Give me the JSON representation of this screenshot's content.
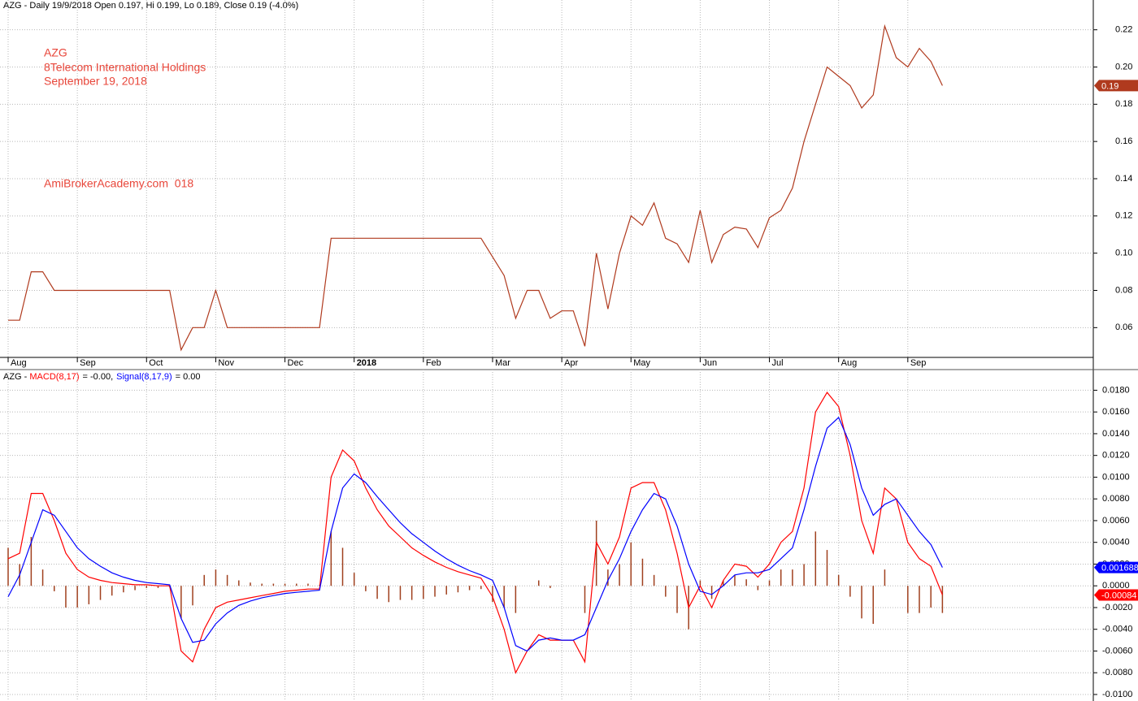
{
  "chart_data": [
    {
      "type": "line",
      "title": "AZG - Daily 19/9/2018 Open 0.197, Hi 0.199, Lo 0.189, Close 0.19 (-4.0%)",
      "annotations": [
        "AZG",
        "8Telecom International Holdings",
        "September 19, 2018",
        "AmiBrokerAcademy.com  018"
      ],
      "categories": [
        "Aug",
        null,
        null,
        null,
        null,
        null,
        "Sep",
        null,
        null,
        null,
        null,
        null,
        "Oct",
        null,
        null,
        null,
        null,
        null,
        "Nov",
        null,
        null,
        null,
        null,
        null,
        "Dec",
        null,
        null,
        null,
        null,
        null,
        "2018",
        null,
        null,
        null,
        null,
        null,
        "Feb",
        null,
        null,
        null,
        null,
        null,
        "Mar",
        null,
        null,
        null,
        null,
        null,
        "Apr",
        null,
        null,
        null,
        null,
        null,
        "May",
        null,
        null,
        null,
        null,
        null,
        "Jun",
        null,
        null,
        null,
        null,
        null,
        "Jul",
        null,
        null,
        null,
        null,
        null,
        "Aug",
        null,
        null,
        null,
        null,
        null,
        "Sep",
        null,
        null,
        null
      ],
      "series": [
        {
          "color": "#b03a1e",
          "last_label": "0.19",
          "values": [
            0.064,
            0.064,
            0.09,
            0.09,
            0.08,
            0.08,
            0.08,
            0.08,
            0.08,
            0.08,
            0.08,
            0.08,
            0.08,
            0.08,
            0.08,
            0.048,
            0.06,
            0.06,
            0.08,
            0.06,
            0.06,
            0.06,
            0.06,
            0.06,
            0.06,
            0.06,
            0.06,
            0.06,
            0.108,
            0.108,
            0.108,
            0.108,
            0.108,
            0.108,
            0.108,
            0.108,
            0.108,
            0.108,
            0.108,
            0.108,
            0.108,
            0.108,
            0.098,
            0.088,
            0.065,
            0.08,
            0.08,
            0.065,
            0.069,
            0.069,
            0.05,
            0.1,
            0.07,
            0.1,
            0.12,
            0.115,
            0.127,
            0.108,
            0.105,
            0.095,
            0.123,
            0.095,
            0.11,
            0.114,
            0.113,
            0.103,
            0.119,
            0.123,
            0.135,
            0.16,
            0.18,
            0.2,
            0.195,
            0.19,
            0.178,
            0.185,
            0.222,
            0.205,
            0.2,
            0.21,
            0.203,
            0.19
          ]
        }
      ],
      "ylim": [
        0.044,
        0.236
      ],
      "yticks": [
        0.06,
        0.08,
        {
          "value": 0.1,
          "label": "0.10"
        },
        0.12,
        0.14,
        0.16,
        0.18,
        {
          "value": 0.2,
          "label": "0.20"
        },
        0.22
      ],
      "grid": true
    },
    {
      "type": "line",
      "title": "AZG - ",
      "series": [
        {
          "name": "MACD(8,17)",
          "readout": "= -0.00,",
          "color": "#ff0000",
          "last_label": "-0.00084",
          "values": [
            0.0025,
            0.003,
            0.0085,
            0.0085,
            0.006,
            0.003,
            0.0015,
            0.0008,
            0.0005,
            0.0003,
            0.0002,
            0.0001,
            0.0001,
            0,
            0,
            -0.006,
            -0.007,
            -0.004,
            -0.002,
            -0.0015,
            -0.0013,
            -0.0011,
            -0.0009,
            -0.0007,
            -0.0005,
            -0.0004,
            -0.0003,
            -0.0003,
            0.01,
            0.0125,
            0.0115,
            0.009,
            0.007,
            0.0055,
            0.0045,
            0.0035,
            0.0028,
            0.0022,
            0.0017,
            0.0013,
            0.001,
            0.0007,
            -0.001,
            -0.004,
            -0.008,
            -0.006,
            -0.0045,
            -0.005,
            -0.005,
            -0.005,
            -0.007,
            0.004,
            0.002,
            0.0045,
            0.009,
            0.0095,
            0.0095,
            0.007,
            0.003,
            -0.002,
            0,
            -0.002,
            0.0005,
            0.002,
            0.0018,
            0.0008,
            0.002,
            0.004,
            0.005,
            0.009,
            0.016,
            0.0178,
            0.0165,
            0.012,
            0.006,
            0.003,
            0.009,
            0.008,
            0.004,
            0.0025,
            0.0018,
            -0.00084
          ]
        },
        {
          "name": "Signal(8,17,9)",
          "readout": "= 0.00",
          "color": "#0000ff",
          "last_label": "0.001688",
          "values": [
            -0.001,
            0.001,
            0.004,
            0.007,
            0.0065,
            0.005,
            0.0035,
            0.0025,
            0.0018,
            0.0012,
            0.0008,
            0.0005,
            0.0003,
            0.0002,
            0.0001,
            -0.003,
            -0.0052,
            -0.005,
            -0.0035,
            -0.0025,
            -0.0018,
            -0.0014,
            -0.0011,
            -0.0009,
            -0.0007,
            -0.0006,
            -0.0005,
            -0.0004,
            0.005,
            0.009,
            0.0103,
            0.0095,
            0.0082,
            0.007,
            0.0058,
            0.0048,
            0.004,
            0.0032,
            0.0025,
            0.0019,
            0.0014,
            0.001,
            0.0005,
            -0.002,
            -0.0055,
            -0.006,
            -0.005,
            -0.0048,
            -0.005,
            -0.005,
            -0.0045,
            -0.002,
            0.0005,
            0.0025,
            0.005,
            0.007,
            0.0085,
            0.008,
            0.0055,
            0.002,
            -0.0005,
            -0.0008,
            0,
            0.001,
            0.0012,
            0.0012,
            0.0015,
            0.0025,
            0.0035,
            0.007,
            0.011,
            0.0145,
            0.0155,
            0.013,
            0.009,
            0.0065,
            0.0075,
            0.008,
            0.0065,
            0.005,
            0.0038,
            0.001688
          ]
        }
      ],
      "histogram": {
        "color": "#a0401e",
        "values": [
          0.0035,
          0.002,
          0.0045,
          0.0015,
          -0.0005,
          -0.002,
          -0.002,
          -0.0017,
          -0.0013,
          -0.0009,
          -0.0006,
          -0.0004,
          -0.0002,
          -0.0002,
          -0.0001,
          -0.003,
          -0.0018,
          0.001,
          0.0015,
          0.001,
          0.0005,
          0.0003,
          0.0002,
          0.0002,
          0.0002,
          0.0002,
          0.0002,
          0.0001,
          0.005,
          0.0035,
          0.0012,
          -0.0005,
          -0.0012,
          -0.0015,
          -0.0013,
          -0.0013,
          -0.0012,
          -0.001,
          -0.0008,
          -0.0006,
          -0.0004,
          -0.0003,
          -0.0015,
          -0.002,
          -0.0025,
          0,
          0.0005,
          -0.0002,
          0,
          0,
          -0.0025,
          0.006,
          0.0015,
          0.002,
          0.004,
          0.0025,
          0.001,
          -0.001,
          -0.0025,
          -0.004,
          0.0005,
          -0.0012,
          0.0005,
          0.001,
          0.0006,
          -0.0004,
          0.0005,
          0.0015,
          0.0015,
          0.002,
          0.005,
          0.0033,
          0.001,
          -0.001,
          -0.003,
          -0.0035,
          0.0015,
          0,
          -0.0025,
          -0.0025,
          -0.002,
          -0.0025
        ]
      },
      "ylim": [
        -0.0106,
        0.0199
      ],
      "yticks": [
        {
          "value": 0.018,
          "label": "0.0180"
        },
        {
          "value": 0.016,
          "label": "0.0160"
        },
        {
          "value": 0.014,
          "label": "0.0140"
        },
        {
          "value": 0.012,
          "label": "0.0120"
        },
        {
          "value": 0.01,
          "label": "0.0100"
        },
        {
          "value": 0.008,
          "label": "0.0080"
        },
        {
          "value": 0.006,
          "label": "0.0060"
        },
        {
          "value": 0.004,
          "label": "0.0040"
        },
        {
          "value": 0.002,
          "label": "0.0020"
        },
        {
          "value": 0,
          "label": "0.0000"
        },
        {
          "value": -0.002,
          "label": "-0.0020"
        },
        {
          "value": -0.004,
          "label": "-0.0040"
        },
        {
          "value": -0.006,
          "label": "-0.0060"
        },
        {
          "value": -0.008,
          "label": "-0.0080"
        },
        {
          "value": -0.01,
          "label": "-0.0100"
        }
      ],
      "grid": true
    }
  ]
}
